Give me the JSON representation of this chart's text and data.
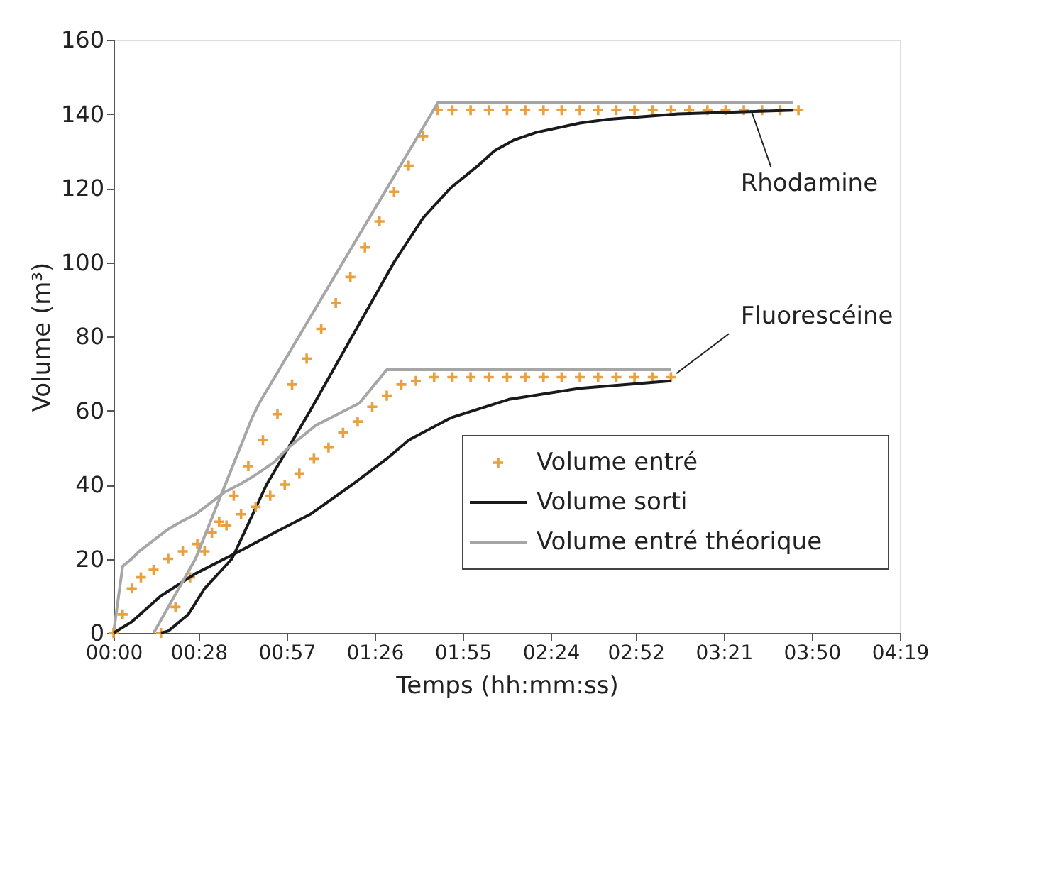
{
  "chart_data": {
    "type": "line",
    "xlabel": "Temps (hh:mm:ss)",
    "ylabel": "Volume (m³)",
    "xlim": [
      0,
      4.3167
    ],
    "xticks": [
      {
        "value": 0,
        "label": "00:00"
      },
      {
        "value": 0.4667,
        "label": "00:28"
      },
      {
        "value": 0.95,
        "label": "00:57"
      },
      {
        "value": 1.4333,
        "label": "01:26"
      },
      {
        "value": 1.9167,
        "label": "01:55"
      },
      {
        "value": 2.4,
        "label": "02:24"
      },
      {
        "value": 2.8667,
        "label": "02:52"
      },
      {
        "value": 3.35,
        "label": "03:21"
      },
      {
        "value": 3.8333,
        "label": "03:50"
      },
      {
        "value": 4.3167,
        "label": "04:19"
      }
    ],
    "ylim": [
      0,
      160
    ],
    "yticks": [
      0,
      20,
      40,
      60,
      80,
      100,
      120,
      140,
      160
    ],
    "grid": false,
    "legend": "bottom right",
    "annotations": [
      {
        "text": "Rhodamine",
        "x": 3.5,
        "y": 141
      },
      {
        "text": "Fluorescéine",
        "x": 3.09,
        "y": 70
      }
    ],
    "series": [
      {
        "name": "Volume entré",
        "type": "scatter",
        "marker": "cross",
        "color": "#e8a040",
        "x": [
          0.26,
          0.34,
          0.42,
          0.5,
          0.58,
          0.66,
          0.74,
          0.82,
          0.9,
          0.98,
          1.06,
          1.14,
          1.22,
          1.3,
          1.38,
          1.46,
          1.54,
          1.62,
          1.7,
          1.78,
          1.86,
          1.96,
          2.06,
          2.16,
          2.26,
          2.36,
          2.46,
          2.56,
          2.66,
          2.76,
          2.86,
          2.96,
          3.06,
          3.16,
          3.26,
          3.36,
          3.46,
          3.56,
          3.66,
          3.76
        ],
        "values": [
          0,
          7,
          15,
          22,
          30,
          37,
          45,
          52,
          59,
          67,
          74,
          82,
          89,
          96,
          104,
          111,
          119,
          126,
          134,
          141,
          141,
          141,
          141,
          141,
          141,
          141,
          141,
          141,
          141,
          141,
          141,
          141,
          141,
          141,
          141,
          141,
          141,
          141,
          141,
          141
        ]
      },
      {
        "name": "Volume sorti",
        "color": "#1a1a1a",
        "x": [
          0.26,
          0.3,
          0.41,
          0.5,
          0.65,
          0.84,
          1.08,
          1.31,
          1.54,
          1.7,
          1.85,
          2.0,
          2.09,
          2.2,
          2.32,
          2.56,
          2.71,
          3.1,
          3.4,
          3.73
        ],
        "values": [
          0,
          0.5,
          5,
          12,
          20,
          40,
          60,
          80,
          100,
          112,
          120,
          126,
          130,
          133,
          135,
          137.5,
          138.5,
          140,
          140.5,
          141
        ]
      },
      {
        "name": "Volume entré théorique",
        "color": "#a6a6a6",
        "x": [
          0,
          0.05,
          0.1,
          0.14,
          0.22,
          0.3,
          0.37,
          0.45,
          0.61,
          0.69,
          0.76,
          0.88,
          0.96,
          1.11,
          1.19,
          1.35,
          1.5,
          3.06
        ],
        "values": [
          0,
          18,
          20,
          22,
          25,
          28,
          30,
          32,
          38,
          40,
          42,
          46,
          50,
          56,
          58,
          62,
          71,
          71
        ]
      },
      {
        "type": "scatter",
        "marker": "cross",
        "color": "#e8a040",
        "x": [
          0,
          0.05,
          0.1,
          0.15,
          0.22,
          0.3,
          0.38,
          0.46,
          0.54,
          0.62,
          0.7,
          0.78,
          0.86,
          0.94,
          1.02,
          1.1,
          1.18,
          1.26,
          1.34,
          1.42,
          1.5,
          1.58,
          1.66,
          1.76,
          1.86,
          1.96,
          2.06,
          2.16,
          2.26,
          2.36,
          2.46,
          2.56,
          2.66,
          2.76,
          2.86,
          2.96,
          3.06
        ],
        "values": [
          0,
          5,
          12,
          15,
          17,
          20,
          22,
          24,
          27,
          29,
          32,
          34,
          37,
          40,
          43,
          47,
          50,
          54,
          57,
          61,
          64,
          67,
          68,
          69,
          69,
          69,
          69,
          69,
          69,
          69,
          69,
          69,
          69,
          69,
          69,
          69,
          69
        ]
      },
      {
        "color": "#1a1a1a",
        "x": [
          0,
          0.1,
          0.26,
          0.45,
          0.69,
          0.92,
          1.08,
          1.31,
          1.5,
          1.62,
          1.85,
          2.17,
          2.56,
          3.06
        ],
        "values": [
          0,
          3,
          10,
          16,
          22,
          28,
          32,
          40,
          47,
          52,
          58,
          63,
          66,
          68
        ]
      },
      {
        "color": "#a6a6a6",
        "x": [
          0.22,
          0.45,
          0.76,
          0.8,
          1.78,
          3.73
        ],
        "values": [
          0,
          20,
          58,
          62,
          143,
          143
        ]
      }
    ]
  }
}
